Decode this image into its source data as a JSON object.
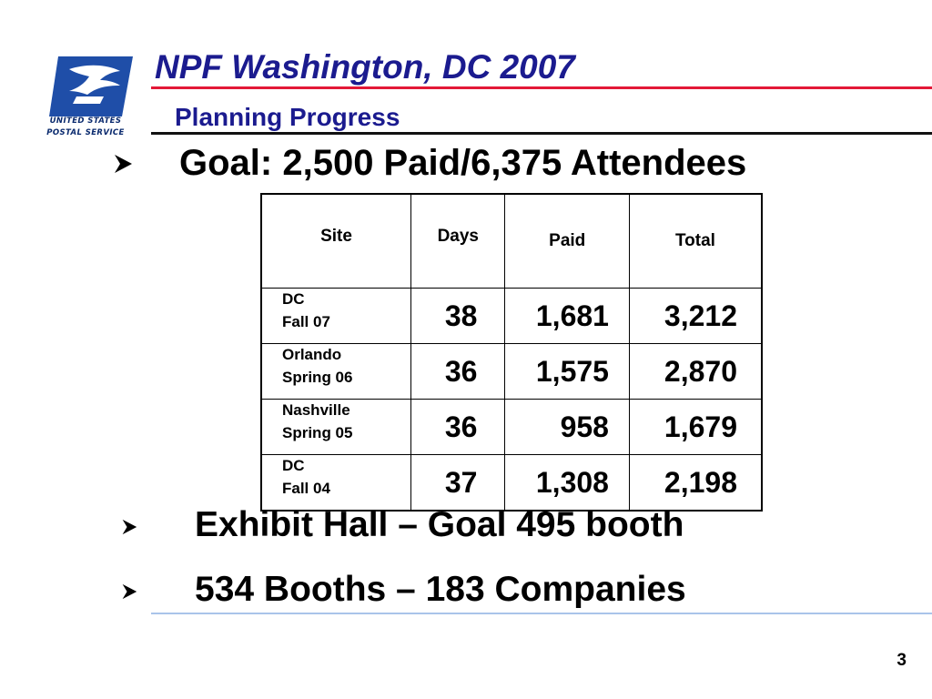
{
  "logo": {
    "line1": "UNITED STATES",
    "line2": "POSTAL SERVICE"
  },
  "header": {
    "title": "NPF Washington, DC 2007",
    "subtitle": "Planning Progress"
  },
  "goal_bullet": "Goal: 2,500 Paid/6,375 Attendees",
  "table": {
    "headers": [
      "Site",
      "Days",
      "Paid",
      "Total"
    ],
    "rows": [
      {
        "site": "DC",
        "season": "Fall 07",
        "days": "38",
        "paid": "1,681",
        "total": "3,212"
      },
      {
        "site": "Orlando",
        "season": "Spring 06",
        "days": "36",
        "paid": "1,575",
        "total": "2,870"
      },
      {
        "site": "Nashville",
        "season": "Spring 05",
        "days": "36",
        "paid": "958",
        "total": "1,679"
      },
      {
        "site": "DC",
        "season": "Fall 04",
        "days": "37",
        "paid": "1,308",
        "total": "2,198"
      }
    ]
  },
  "bullets": [
    "Exhibit Hall – Goal 495 booth",
    "534 Booths – 183 Companies"
  ],
  "page_number": "3",
  "colors": {
    "title": "#1b1b8f",
    "red_rule": "#e31837",
    "logo_blue": "#1f4ea8",
    "blue_rule": "#a9c4ea"
  }
}
